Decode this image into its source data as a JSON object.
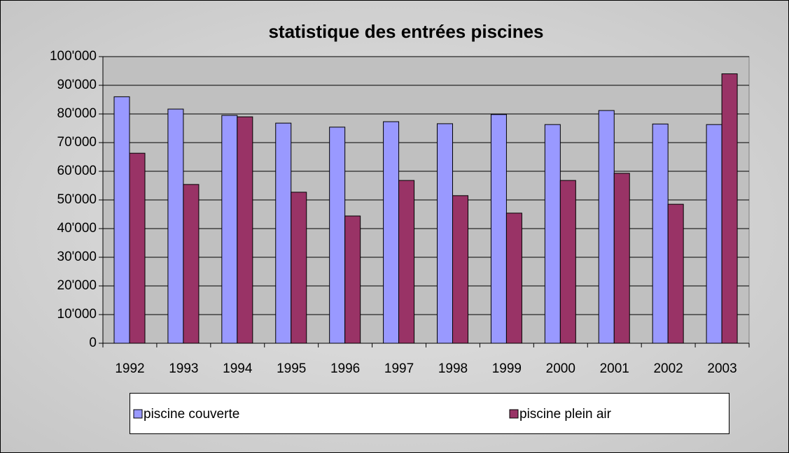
{
  "chart_data": {
    "type": "bar",
    "title": "statistique des entrées piscines",
    "categories": [
      "1992",
      "1993",
      "1994",
      "1995",
      "1996",
      "1997",
      "1998",
      "1999",
      "2000",
      "2001",
      "2002",
      "2003"
    ],
    "series": [
      {
        "name": "piscine couverte",
        "color": "#9999ff",
        "values": [
          86000,
          81700,
          79500,
          76800,
          75400,
          77300,
          76600,
          79800,
          76300,
          81200,
          76500,
          76300
        ]
      },
      {
        "name": "piscine plein air",
        "color": "#993366",
        "values": [
          66300,
          55400,
          79000,
          52700,
          44400,
          56800,
          51500,
          45400,
          56800,
          59300,
          48500,
          94000
        ]
      }
    ],
    "ylim": [
      0,
      100000
    ],
    "yticks": [
      0,
      {
        "value": 10000,
        "label": "10'000"
      },
      {
        "value": 20000,
        "label": "20'000"
      },
      {
        "value": 30000,
        "label": "30'000"
      },
      {
        "value": 40000,
        "label": "40'000"
      },
      {
        "value": 50000,
        "label": "50'000"
      },
      {
        "value": 60000,
        "label": "60'000"
      },
      {
        "value": 70000,
        "label": "70'000"
      },
      {
        "value": 80000,
        "label": "80'000"
      },
      {
        "value": 90000,
        "label": "90'000"
      },
      {
        "value": 100000,
        "label": "100'000"
      }
    ],
    "grid": true,
    "legend": "bottom",
    "plot_background": "#c0c0c0"
  }
}
